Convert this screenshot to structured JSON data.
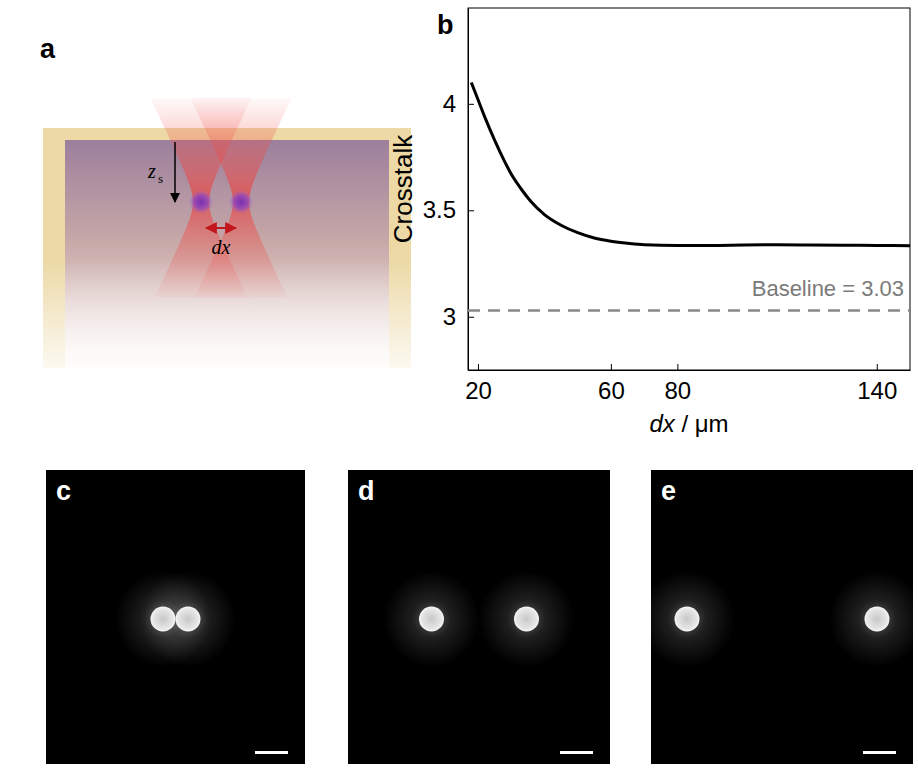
{
  "panel_labels": [
    "a",
    "b",
    "c",
    "d",
    "e"
  ],
  "schematic": {
    "depth_label": "z",
    "depth_subscript": "s",
    "spacing_label": "dx"
  },
  "chart_data": {
    "type": "line",
    "x_label": "dx / μm",
    "y_label": "Crosstalk",
    "x": [
      18,
      20,
      22,
      25,
      28,
      30,
      33,
      36,
      40,
      45,
      50,
      55,
      60,
      65,
      70,
      80,
      90,
      100,
      110,
      120,
      130,
      140,
      150
    ],
    "values": [
      4.1,
      4.02,
      3.94,
      3.83,
      3.73,
      3.67,
      3.6,
      3.54,
      3.48,
      3.43,
      3.395,
      3.37,
      3.355,
      3.345,
      3.338,
      3.335,
      3.335,
      3.337,
      3.338,
      3.337,
      3.336,
      3.335,
      3.334
    ],
    "color": "#000000",
    "xlim": [
      17,
      150
    ],
    "ylim": [
      2.75,
      4.45
    ],
    "xticks": [
      20,
      60,
      80,
      140
    ],
    "yticks": [
      3,
      3.5,
      4
    ],
    "annotations": [
      {
        "text": "Baseline = 3.03",
        "y": 3.03
      }
    ]
  }
}
